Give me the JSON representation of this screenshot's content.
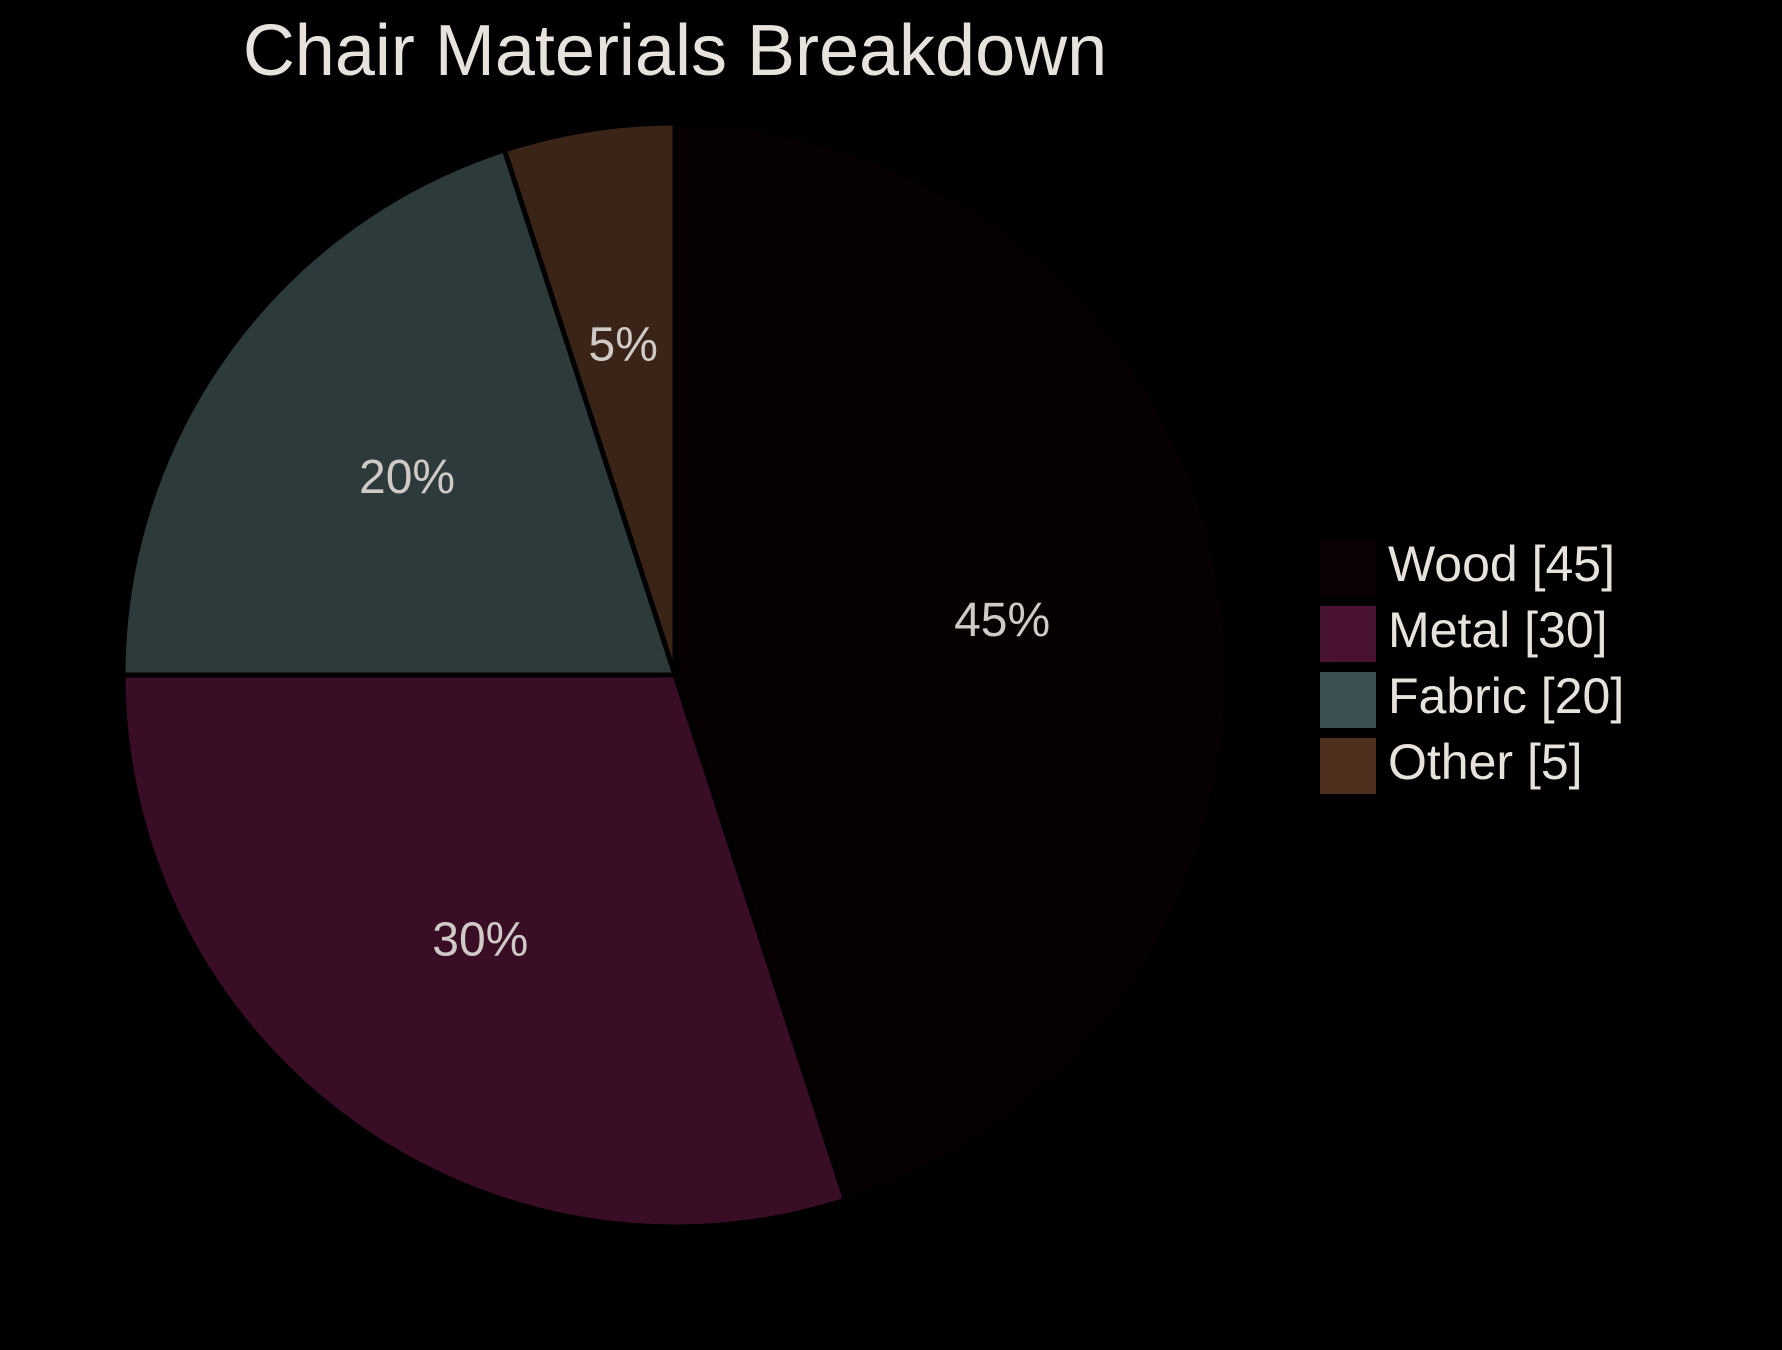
{
  "chart_data": {
    "type": "pie",
    "title": "Chair Materials Breakdown",
    "categories": [
      "Wood",
      "Metal",
      "Fabric",
      "Other"
    ],
    "values": [
      45,
      30,
      20,
      5
    ],
    "slice_labels": [
      "45%",
      "30%",
      "20%",
      "5%"
    ],
    "legend_labels": [
      "Wood [45]",
      "Metal [30]",
      "Fabric [20]",
      "Other [5]"
    ],
    "slice_colors": [
      "#060000",
      "#380d25",
      "#2c3a3c",
      "#3a2317"
    ],
    "legend_colors": [
      "#0a0202",
      "#4a1232",
      "#3d5053",
      "#4f2f1e"
    ],
    "start_angle": "12 o'clock",
    "direction": "clockwise",
    "legend_position": "right",
    "background": "#000000"
  }
}
